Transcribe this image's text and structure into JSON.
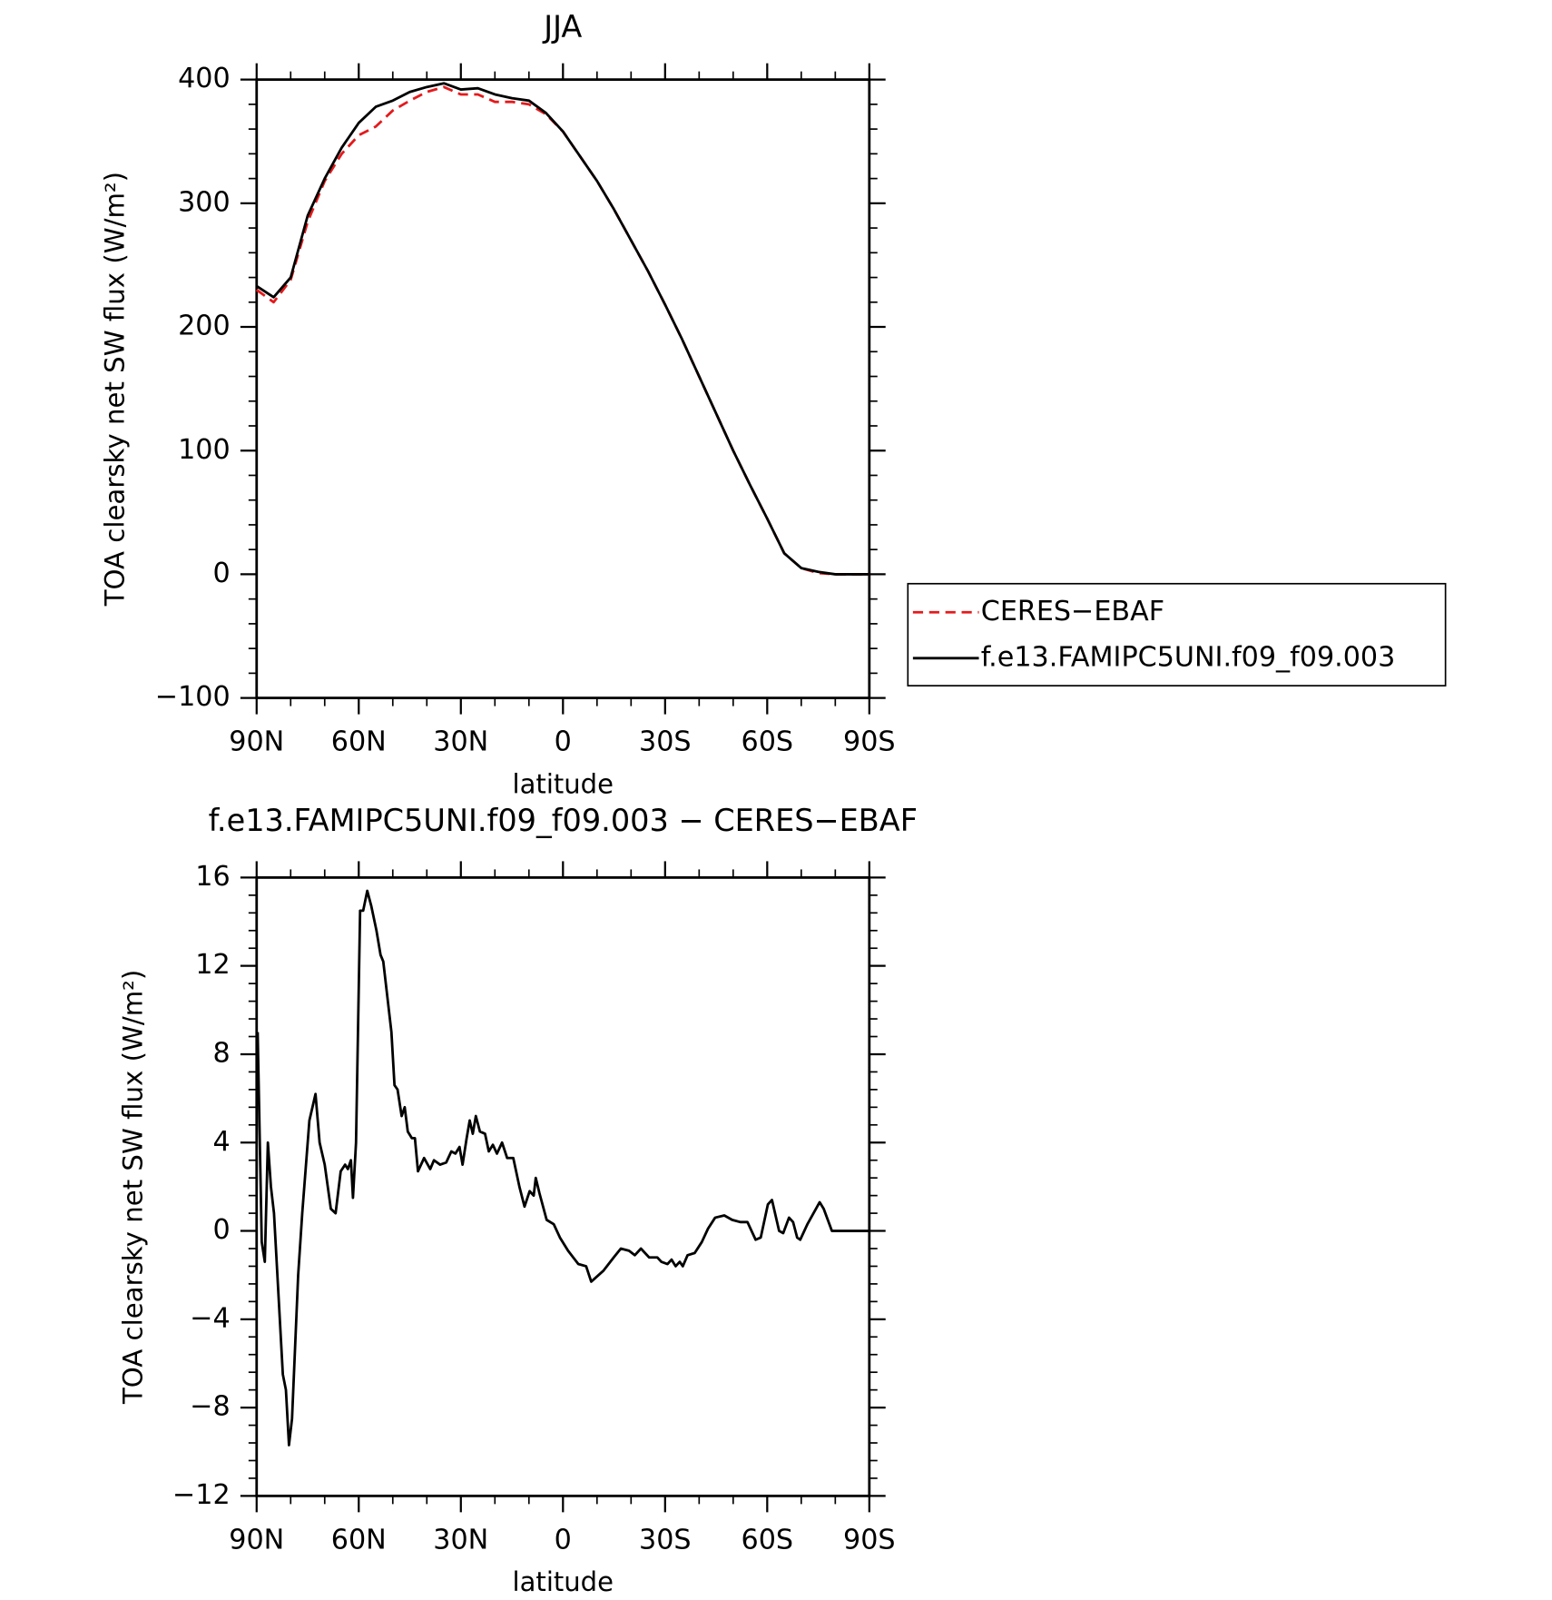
{
  "chart_data": [
    {
      "type": "line",
      "title": "JJA",
      "x_label": "latitude",
      "y_label": "TOA clearsky net SW flux (W/m²)",
      "x": [
        90,
        85,
        80,
        75,
        70,
        65,
        60,
        55,
        50,
        45,
        40,
        35,
        30,
        25,
        20,
        15,
        10,
        5,
        0,
        -5,
        -10,
        -15,
        -20,
        -25,
        -30,
        -35,
        -40,
        -45,
        -50,
        -55,
        -60,
        -65,
        -70,
        -75,
        -80,
        -85,
        -90
      ],
      "series": [
        {
          "name": "CERES−EBAF",
          "color": "#e41a1c",
          "line_style": "dashed",
          "values": [
            230,
            220,
            238,
            285,
            318,
            340,
            355,
            362,
            375,
            383,
            390,
            394,
            388,
            388,
            382,
            382,
            380,
            372,
            358,
            338,
            318,
            295,
            270,
            245,
            218,
            190,
            160,
            130,
            100,
            72,
            45,
            17,
            5,
            1,
            0,
            0,
            0
          ]
        },
        {
          "name": "f.e13.FAMIPC5UNI.f09_f09.003",
          "color": "#000000",
          "line_style": "solid",
          "values": [
            233,
            224,
            240,
            290,
            320,
            345,
            365,
            378,
            383,
            390,
            394,
            397,
            392,
            393,
            388,
            385,
            383,
            373,
            358,
            338,
            318,
            295,
            270,
            245,
            218,
            190,
            160,
            130,
            100,
            72,
            45,
            17,
            5,
            2,
            0,
            0,
            0
          ]
        }
      ],
      "xlim": [
        90,
        -90
      ],
      "xticks": [
        {
          "value": 90,
          "label": "90N"
        },
        {
          "value": 60,
          "label": "60N"
        },
        {
          "value": 30,
          "label": "30N"
        },
        0,
        {
          "value": -30,
          "label": "30S"
        },
        {
          "value": -60,
          "label": "60S"
        },
        {
          "value": -90,
          "label": "90S"
        }
      ],
      "ylim": [
        -100,
        400
      ],
      "yticks": [
        {
          "value": -100,
          "label": "−100"
        },
        0,
        100,
        200,
        300,
        400
      ],
      "legend": "right"
    },
    {
      "type": "line",
      "title": "f.e13.FAMIPC5UNI.f09_f09.003 − CERES−EBAF",
      "x_label": "latitude",
      "y_label": "TOA clearsky net SW flux (W/m²)",
      "x": [
        89.7,
        88.5,
        87.6,
        86.7,
        85.8,
        84.9,
        82.3,
        81.4,
        80.5,
        79.6,
        77.8,
        76.6,
        74.5,
        72.7,
        71.5,
        70,
        68.2,
        66.8,
        65.3,
        64,
        63.2,
        62.3,
        61.7,
        60.8,
        59.6,
        58.7,
        57.5,
        56.3,
        54.8,
        53.6,
        52.8,
        50.4,
        49.5,
        48.6,
        47.4,
        46.5,
        45.6,
        44.4,
        43.5,
        42.6,
        40.8,
        39,
        37.9,
        36.1,
        34.3,
        32.8,
        31.6,
        30.4,
        29.5,
        28.3,
        27.4,
        26.5,
        25.6,
        24.4,
        22.9,
        21.8,
        20.6,
        19.4,
        17.9,
        16.4,
        14.6,
        12.8,
        11.3,
        9.8,
        8.6,
        8,
        6.9,
        4.8,
        2.7,
        0.9,
        -1.5,
        -4.5,
        -6.8,
        -8.3,
        -11.9,
        -14.9,
        -17,
        -19.4,
        -21.1,
        -22.9,
        -25.3,
        -27.7,
        -28.9,
        -30.7,
        -31.9,
        -33.1,
        -34.3,
        -35.2,
        -36.6,
        -38.7,
        -40.8,
        -42.6,
        -44.7,
        -47.4,
        -49.7,
        -52.1,
        -54.2,
        -56.6,
        -58.1,
        -60.2,
        -61.4,
        -63.5,
        -64.7,
        -66.4,
        -67.6,
        -68.8,
        -69.7,
        -71.8,
        -75.4,
        -76.6,
        -79,
        -80.7,
        -90
      ],
      "series": [
        {
          "color": "#000000",
          "line_style": "solid",
          "values": [
            9,
            -0.5,
            -1.4,
            4,
            2,
            0.8,
            -6.5,
            -7.2,
            -9.7,
            -8.5,
            -2,
            0.8,
            5,
            6.2,
            4,
            3,
            1,
            0.8,
            2.7,
            3,
            2.8,
            3.2,
            1.5,
            4,
            14.5,
            14.5,
            15.4,
            14.7,
            13.6,
            12.5,
            12.2,
            9,
            6.6,
            6.4,
            5.2,
            5.6,
            4.5,
            4.2,
            4.2,
            2.7,
            3.3,
            2.8,
            3.2,
            3,
            3.1,
            3.6,
            3.5,
            3.8,
            3,
            4.2,
            5,
            4.4,
            5.2,
            4.5,
            4.4,
            3.6,
            3.9,
            3.5,
            4,
            3.3,
            3.3,
            2,
            1.1,
            1.8,
            1.6,
            2.4,
            1.7,
            0.5,
            0.3,
            -0.3,
            -0.9,
            -1.5,
            -1.6,
            -2.3,
            -1.8,
            -1.2,
            -0.8,
            -0.9,
            -1.1,
            -0.8,
            -1.2,
            -1.2,
            -1.4,
            -1.5,
            -1.3,
            -1.6,
            -1.4,
            -1.6,
            -1.1,
            -1,
            -0.5,
            0.1,
            0.6,
            0.7,
            0.5,
            0.4,
            0.4,
            -0.4,
            -0.3,
            1.2,
            1.4,
            0,
            -0.1,
            0.6,
            0.4,
            -0.3,
            -0.4,
            0.3,
            1.3,
            1,
            0,
            0,
            0
          ]
        }
      ],
      "xlim": [
        90,
        -90
      ],
      "xticks": [
        {
          "value": 90,
          "label": "90N"
        },
        {
          "value": 60,
          "label": "60N"
        },
        {
          "value": 30,
          "label": "30N"
        },
        0,
        {
          "value": -30,
          "label": "30S"
        },
        {
          "value": -60,
          "label": "60S"
        },
        {
          "value": -90,
          "label": "90S"
        }
      ],
      "ylim": [
        -12,
        16
      ],
      "yticks": [
        {
          "value": -12,
          "label": "−12"
        },
        {
          "value": -8,
          "label": "−8"
        },
        {
          "value": -4,
          "label": "−4"
        },
        0,
        4,
        8,
        12,
        16
      ]
    }
  ]
}
